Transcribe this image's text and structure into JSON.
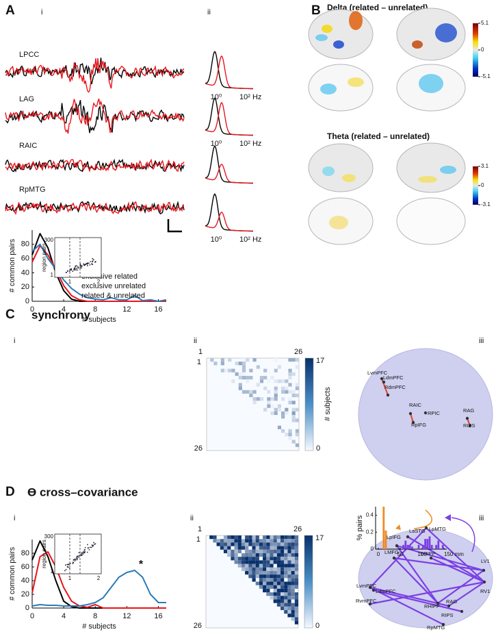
{
  "figure": {
    "A": {
      "label": "A",
      "sub": [
        "i",
        "ii"
      ],
      "traces": [
        "LPCC",
        "LAG",
        "RAIC",
        "RpMTG"
      ],
      "freq_ticks": [
        "10⁰",
        "10² Hz"
      ]
    },
    "B": {
      "label": "B",
      "maps": [
        {
          "title": "Delta (related – unrelated)",
          "colorbar": [
            5.1,
            0,
            -5.1
          ]
        },
        {
          "title": "Theta (related – unrelated)",
          "colorbar": [
            3.1,
            0,
            -3.1
          ]
        }
      ]
    },
    "C": {
      "label": "C",
      "title": "synchrony",
      "sub": [
        "i",
        "ii",
        "iii"
      ],
      "inset": {
        "ylabel": "region pairs",
        "yticks": [
          "300",
          "1"
        ],
        "xticks": [
          "1",
          "2"
        ]
      },
      "matrix": {
        "ticks": [
          "1",
          "26"
        ],
        "colorbar_ticks": [
          "17",
          "0"
        ],
        "colorbar_label": "# subjects"
      },
      "brain_labels": [
        "LvmPFC",
        "LdmPFC",
        "RdmPFC",
        "RAIC",
        "RPIC",
        "RpIFG",
        "RAG",
        "RIPS"
      ]
    },
    "D": {
      "label": "D",
      "title": "ϴ cross–covariance",
      "sub": [
        "i",
        "ii",
        "iii"
      ],
      "inset": {
        "ylabel": "region pairs",
        "yticks": [
          "300",
          "1"
        ],
        "xticks": [
          "1",
          "2"
        ]
      },
      "matrix": {
        "ticks": [
          "1",
          "26"
        ],
        "colorbar_ticks": [
          "17",
          "0"
        ]
      },
      "brain_labels": [
        "LpIFG",
        "LaSTG",
        "LpMTG",
        "LMFG",
        "LHIPP",
        "LV1",
        "LvmPFC",
        "LdmPFC",
        "RvmPFC",
        "RHIPP",
        "RAG",
        "RIPS",
        "RV1",
        "RpMTG"
      ]
    }
  },
  "chart_data": [
    {
      "type": "line",
      "x": [
        0,
        1,
        2,
        3,
        4,
        5,
        6,
        7,
        8,
        9,
        10,
        11,
        12,
        13,
        14,
        15,
        16,
        17
      ],
      "xlim": [
        0,
        17
      ],
      "ylim": [
        0,
        100
      ],
      "xticks": [
        0,
        4,
        8,
        12,
        16
      ],
      "yticks": [
        0,
        20,
        40,
        60,
        80
      ],
      "xlabel": "# subjects",
      "ylabel": "# common pairs",
      "legend": true,
      "series": [
        {
          "name": "exclusive related",
          "color": "#000000",
          "values": [
            65,
            95,
            75,
            40,
            15,
            3,
            0,
            0,
            0,
            0,
            0,
            0,
            0,
            0,
            0,
            0,
            0,
            0
          ]
        },
        {
          "name": "exclusive unrelated",
          "color": "#e8141b",
          "values": [
            55,
            78,
            65,
            45,
            22,
            8,
            2,
            0,
            0,
            0,
            0,
            0,
            0,
            0,
            0,
            0,
            0,
            0
          ]
        },
        {
          "name": "related & unrelated",
          "color": "#2a7ab9",
          "values": [
            70,
            80,
            60,
            45,
            30,
            18,
            10,
            5,
            3,
            2,
            5,
            2,
            2,
            8,
            1,
            2,
            0,
            2
          ]
        }
      ]
    },
    {
      "type": "line",
      "x": [
        0,
        1,
        2,
        3,
        4,
        5,
        6,
        7,
        8,
        9,
        10,
        11,
        12,
        13,
        14,
        15,
        16,
        17
      ],
      "xlim": [
        0,
        17
      ],
      "ylim": [
        0,
        100
      ],
      "xticks": [
        0,
        4,
        8,
        12,
        16
      ],
      "yticks": [
        0,
        20,
        40,
        60,
        80
      ],
      "xlabel": "# subjects",
      "ylabel": "# common pairs",
      "legend": false,
      "annotation": "*",
      "series": [
        {
          "color": "#000000",
          "values": [
            70,
            98,
            75,
            40,
            10,
            2,
            0,
            0,
            0,
            0,
            0,
            0,
            0,
            0,
            0,
            0,
            0,
            0
          ]
        },
        {
          "color": "#e8141b",
          "values": [
            22,
            75,
            82,
            60,
            30,
            10,
            3,
            1,
            5,
            0,
            0,
            0,
            0,
            0,
            0,
            0,
            0,
            0
          ]
        },
        {
          "color": "#2a7ab9",
          "values": [
            3,
            5,
            4,
            4,
            3,
            3,
            3,
            5,
            8,
            15,
            30,
            45,
            52,
            55,
            45,
            20,
            8,
            8
          ]
        }
      ]
    },
    {
      "type": "histogram",
      "bins": [
        0,
        5,
        10,
        15,
        20,
        25,
        30,
        35,
        40,
        45,
        50,
        55,
        60,
        65,
        70,
        75,
        80,
        85,
        90,
        95,
        100,
        105,
        110,
        115,
        120,
        125,
        130,
        135,
        140,
        145,
        150
      ],
      "xlim": [
        0,
        150
      ],
      "ylim": [
        0,
        0.5
      ],
      "xticks": [
        0,
        50,
        100,
        {
          "value": 150,
          "label": "150 mm"
        }
      ],
      "yticks": [
        0,
        0.2,
        0.4
      ],
      "ylabel": "% pairs",
      "series": [
        {
          "color": "#f08a24",
          "values": [
            0,
            0,
            0.5,
            0.22,
            0,
            0,
            0,
            0,
            0,
            0,
            0,
            0,
            0,
            0,
            0,
            0,
            0,
            0,
            0,
            0,
            0,
            0,
            0,
            0,
            0,
            0,
            0,
            0,
            0,
            0
          ]
        },
        {
          "color": "#7b3fe4",
          "values": [
            0,
            0,
            0,
            0,
            0,
            0,
            0,
            0,
            0,
            0,
            0,
            0.05,
            0.1,
            0.05,
            0.05,
            0.03,
            0,
            0,
            0.05,
            0,
            0.05,
            0.12,
            0.12,
            0.15,
            0.05,
            0,
            0.05,
            0.1,
            0,
            0.05
          ]
        }
      ]
    }
  ]
}
